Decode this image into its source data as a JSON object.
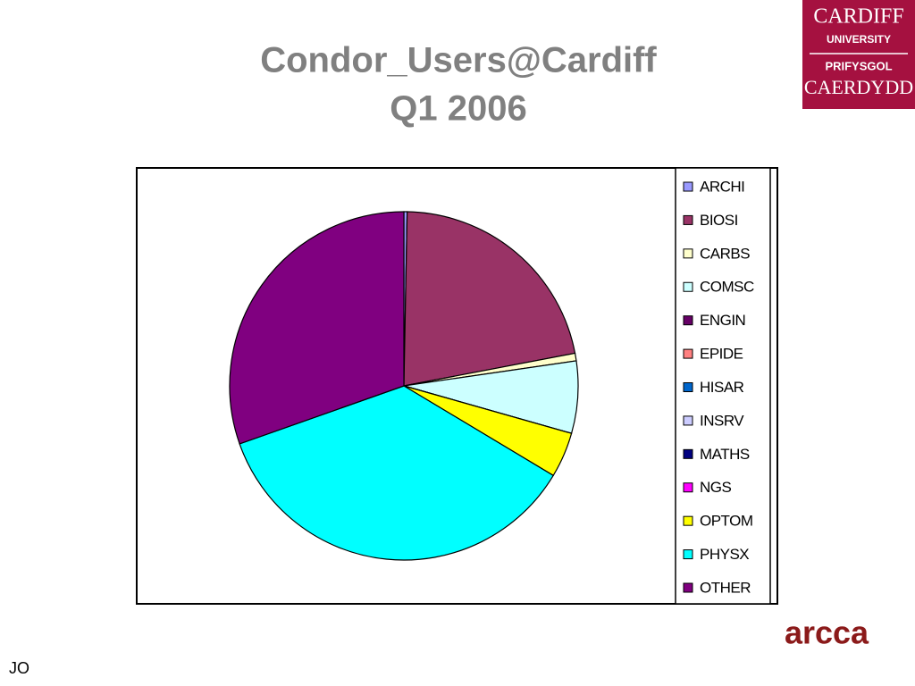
{
  "chart_data": {
    "type": "pie",
    "title": "Condor_Users@Cardiff",
    "subtitle": "Q1 2006",
    "categories": [
      "ARCHI",
      "BIOSI",
      "CARBS",
      "COMSC",
      "ENGIN",
      "EPIDE",
      "HISAR",
      "INSRV",
      "MATHS",
      "NGS",
      "OPTOM",
      "PHYSX",
      "OTHER"
    ],
    "values": [
      0.3,
      21.7,
      0.7,
      6.7,
      0,
      0,
      0,
      0,
      0,
      0,
      4.2,
      36,
      30.4
    ],
    "colors": [
      "#9999ff",
      "#993366",
      "#ffffcc",
      "#ccffff",
      "#660066",
      "#ff8080",
      "#0066cc",
      "#ccccff",
      "#000080",
      "#ff00ff",
      "#ffff00",
      "#00ffff",
      "#800080"
    ],
    "legend": "right"
  },
  "logo": {
    "line1": "CARDIFF",
    "line2": "UNIVERSITY",
    "line3": "PRIFYSGOL",
    "line4": "CAERDYDD"
  },
  "brand": "arcca",
  "footer": "JO"
}
